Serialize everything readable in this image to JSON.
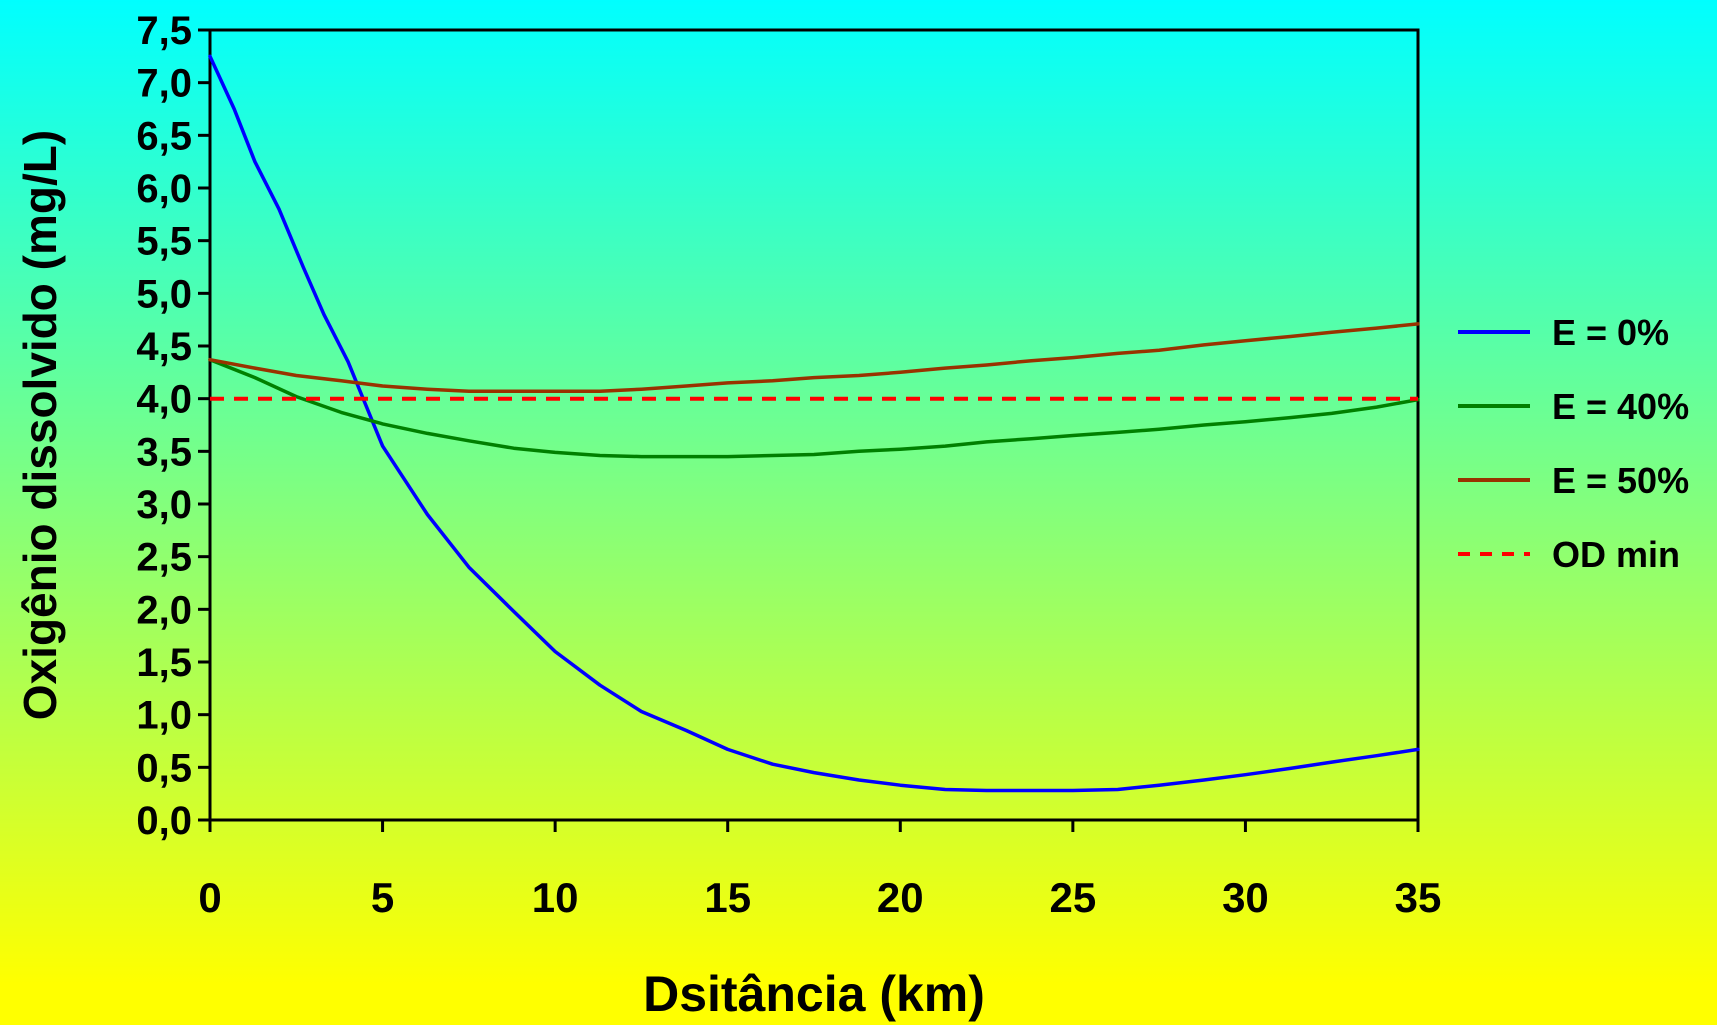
{
  "chart_data": {
    "type": "line",
    "title": "",
    "xlabel": "Dsitância (km)",
    "ylabel": "Oxigênio dissolvido (mg/L)",
    "xlim": [
      0,
      35
    ],
    "ylim": [
      0,
      7.5
    ],
    "x_ticks": [
      "0",
      "5",
      "10",
      "15",
      "20",
      "25",
      "30",
      "35"
    ],
    "y_ticks": [
      "0,0",
      "0,5",
      "1,0",
      "1,5",
      "2,0",
      "2,5",
      "3,0",
      "3,5",
      "4,0",
      "4,5",
      "5,0",
      "5,5",
      "6,0",
      "6,5",
      "7,0",
      "7,5"
    ],
    "grid": false,
    "legend_position": "right",
    "series": [
      {
        "name": "E = 0%",
        "color": "#0000FF",
        "style": "solid",
        "x": [
          0,
          0.7,
          1.3,
          2,
          2.7,
          3.3,
          4,
          4.5,
          5,
          6.3,
          7.5,
          8.8,
          10,
          11.3,
          12.5,
          13.8,
          15,
          16.3,
          17.5,
          18.8,
          20,
          21.3,
          22.5,
          23.8,
          25,
          26.3,
          27.5,
          28.8,
          30,
          31.3,
          32.5,
          33.8,
          35
        ],
        "y": [
          7.25,
          6.75,
          6.25,
          5.8,
          5.25,
          4.8,
          4.35,
          3.95,
          3.55,
          2.9,
          2.4,
          1.98,
          1.6,
          1.28,
          1.03,
          0.85,
          0.67,
          0.53,
          0.45,
          0.38,
          0.33,
          0.29,
          0.28,
          0.28,
          0.28,
          0.29,
          0.33,
          0.38,
          0.43,
          0.49,
          0.55,
          0.61,
          0.67
        ]
      },
      {
        "name": "E = 40%",
        "color": "#008000",
        "style": "solid",
        "x": [
          0,
          1.3,
          2.5,
          3.8,
          5,
          6.3,
          7.5,
          8.8,
          10,
          11.3,
          12.5,
          13.8,
          15,
          16.3,
          17.5,
          18.8,
          20,
          21.3,
          22.5,
          23.8,
          25,
          26.3,
          27.5,
          28.8,
          30,
          31.3,
          32.5,
          33.8,
          35
        ],
        "y": [
          4.37,
          4.2,
          4.02,
          3.87,
          3.76,
          3.67,
          3.6,
          3.53,
          3.49,
          3.46,
          3.45,
          3.45,
          3.45,
          3.46,
          3.47,
          3.5,
          3.52,
          3.55,
          3.59,
          3.62,
          3.65,
          3.68,
          3.71,
          3.75,
          3.78,
          3.82,
          3.86,
          3.92,
          3.99
        ]
      },
      {
        "name": "E = 50%",
        "color": "#993300",
        "style": "solid",
        "x": [
          0,
          1.3,
          2.5,
          3.8,
          5,
          6.3,
          7.5,
          8.8,
          10,
          11.3,
          12.5,
          13.8,
          15,
          16.3,
          17.5,
          18.8,
          20,
          21.3,
          22.5,
          23.8,
          25,
          26.3,
          27.5,
          28.8,
          30,
          31.3,
          32.5,
          33.8,
          35
        ],
        "y": [
          4.37,
          4.29,
          4.22,
          4.17,
          4.12,
          4.09,
          4.07,
          4.07,
          4.07,
          4.07,
          4.09,
          4.12,
          4.15,
          4.17,
          4.2,
          4.22,
          4.25,
          4.29,
          4.32,
          4.36,
          4.39,
          4.43,
          4.46,
          4.51,
          4.55,
          4.59,
          4.63,
          4.67,
          4.71
        ]
      },
      {
        "name": "OD min",
        "color": "#FF0000",
        "style": "dashed",
        "x": [
          0,
          35
        ],
        "y": [
          4.0,
          4.0
        ]
      }
    ]
  }
}
